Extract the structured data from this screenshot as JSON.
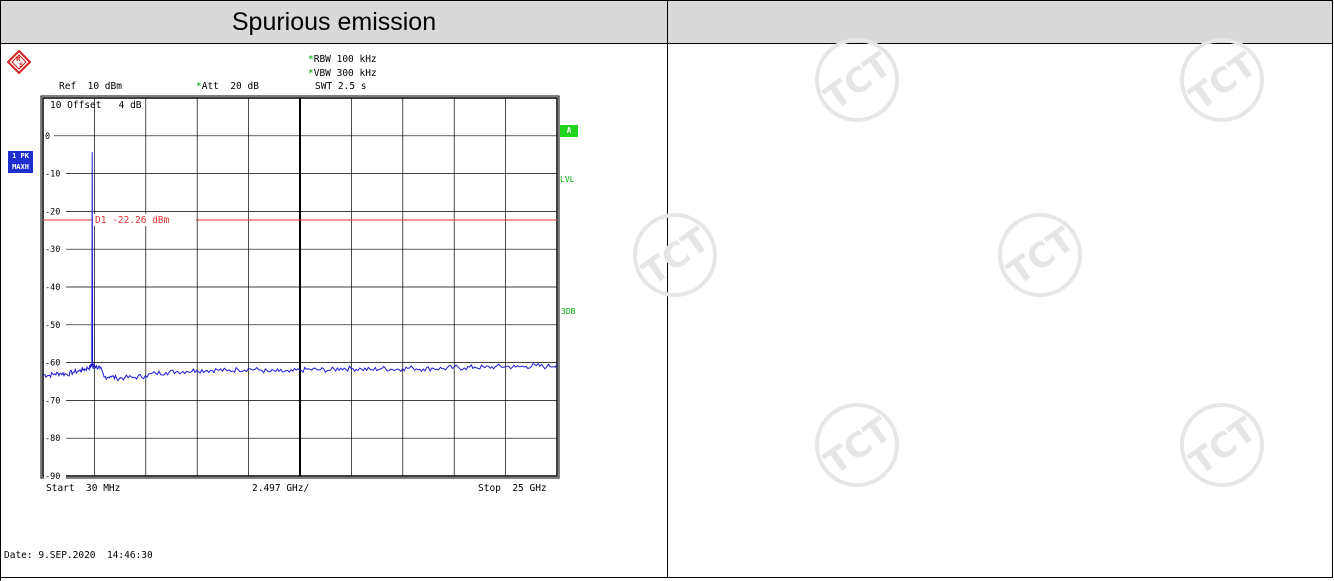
{
  "table": {
    "header_title": "Spurious emission",
    "header_right": ""
  },
  "analyzer": {
    "rbw": "RBW 100 kHz",
    "vbw": "VBW 300 kHz",
    "swt": "SWT 2.5 s",
    "ref": "Ref  10 dBm",
    "att": "Att  20 dB",
    "offset": "10 Offset   4 dB",
    "trace_tag_line1": "1 PK",
    "trace_tag_line2": "MAXH",
    "a_tag": "A",
    "lvl_label": "LVL",
    "db3_label": "3DB",
    "d1_label": "D1 -22.26 dBm",
    "start_label": "Start  30 MHz",
    "center_label": "2.497 GHz/",
    "stop_label": "Stop  25 GHz",
    "date_label": "Date: 9.SEP.2020  14:46:30"
  },
  "colors": {
    "trace": "#1c1cd6",
    "d1_line": "#e03030",
    "grid": "#000000",
    "watermark": "#e2e2e2"
  },
  "chart_data": {
    "type": "line",
    "x_range_mhz": [
      30,
      25000
    ],
    "y_range_dbm": [
      -90,
      10
    ],
    "ylim": [
      -90,
      10
    ],
    "y_ticks": [
      "0",
      "-10",
      "-20",
      "-30",
      "-40",
      "-50",
      "-60",
      "-70",
      "-80",
      "-90"
    ],
    "grid": true,
    "d1_level_dbm": -22.26,
    "series": [
      {
        "x_mhz": [
          30,
          300,
          600,
          900,
          1200,
          1500,
          1800,
          2000,
          2200,
          2350,
          2400,
          2420,
          2440,
          2460,
          2480,
          2500,
          2600,
          2800,
          3000,
          3300,
          3600,
          4000,
          4500,
          5000,
          5500,
          6000,
          6500,
          7000,
          7500,
          8000,
          8500,
          9000,
          9500,
          10000,
          10500,
          11000,
          11500,
          12000,
          12500,
          13000,
          13500,
          14000,
          14500,
          15000,
          15500,
          16000,
          16500,
          17000,
          17500,
          18000,
          18500,
          19000,
          19500,
          20000,
          20500,
          21000,
          21500,
          22000,
          22500,
          23000,
          23500,
          24000,
          24500,
          25000
        ],
        "y_dbm": [
          -63.2,
          -63.4,
          -63.0,
          -62.8,
          -63.1,
          -62.5,
          -62.2,
          -61.8,
          -61.5,
          -61.0,
          -60.5,
          -4.3,
          -60.8,
          -61.0,
          -61.2,
          -60.6,
          -61.1,
          -61.5,
          -63.8,
          -63.6,
          -64.1,
          -64.0,
          -63.9,
          -63.5,
          -62.8,
          -62.6,
          -62.4,
          -62.3,
          -62.0,
          -62.1,
          -61.9,
          -62.2,
          -61.8,
          -61.7,
          -61.9,
          -62.4,
          -62.3,
          -62.5,
          -62.0,
          -61.8,
          -61.9,
          -62.0,
          -61.5,
          -61.6,
          -61.7,
          -61.9,
          -61.5,
          -61.8,
          -61.6,
          -61.4,
          -61.7,
          -61.5,
          -61.6,
          -61.3,
          -61.4,
          -61.2,
          -61.3,
          -61.1,
          -61.0,
          -61.2,
          -61.0,
          -60.8,
          -61.1,
          -60.5
        ]
      }
    ]
  }
}
